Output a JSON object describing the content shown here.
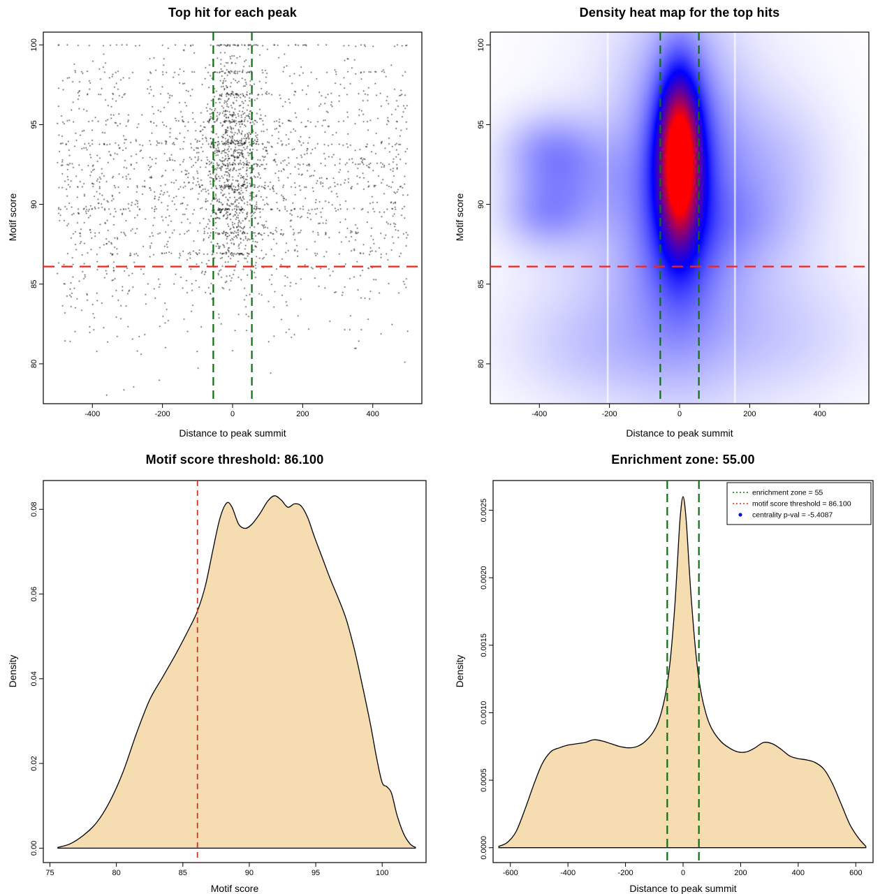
{
  "figure": {
    "background": "#ffffff",
    "summary": {
      "motif_score_threshold": 86.1,
      "enrichment_zone": 55,
      "centrality_pval": "-5.4087"
    }
  },
  "colors": {
    "threshold_red": "#f2241d",
    "threshold_dark_red": "#c0392b",
    "zone_green": "#0f6e0f",
    "density_fill": "#f6ddb1",
    "curve_stroke": "#000000",
    "scatter_point": "#000000",
    "legend_point_blue": "#1212cc",
    "heat_low": "#ffffff",
    "heat_mid": "#0000ff",
    "heat_high": "#ff0000"
  },
  "chart_data": [
    {
      "type": "scatter",
      "title": "Top hit for each peak",
      "xlabel": "Distance to peak summit",
      "ylabel": "Motif score",
      "xlim": [
        -540,
        540
      ],
      "ylim": [
        77.5,
        100.8
      ],
      "xticks": [
        -400,
        -200,
        0,
        200,
        400
      ],
      "xticklabels": [
        "-400",
        "-200",
        "0",
        "200",
        "400"
      ],
      "yticks": [
        80,
        85,
        90,
        95,
        100
      ],
      "yticklabels": [
        "80",
        "85",
        "90",
        "95",
        "100"
      ],
      "motif_score_threshold": 86.1,
      "enrichment_zone": [
        -55,
        55
      ],
      "points_model": {
        "seed": 1337,
        "n": 2900,
        "x_range": [
          -500,
          500
        ],
        "central_fraction": 0.36,
        "central_x_sigma": 42,
        "central_y_mean": 92.6,
        "central_y_sigma": 3.4,
        "background_y_mean": 91.0,
        "background_y_sigma": 4.8,
        "y_range": [
          77.9,
          100.0
        ],
        "score_bands": [
          100.0,
          98.3,
          96.9,
          95.2,
          93.8,
          92.5,
          91.1,
          89.7,
          88.2,
          86.9
        ],
        "band_fraction": 0.2
      }
    },
    {
      "type": "heatmap",
      "title": "Density heat map for the top hits",
      "xlabel": "Distance to peak summit",
      "ylabel": "Motif score",
      "xlim": [
        -540,
        540
      ],
      "ylim": [
        77.5,
        100.8
      ],
      "xticks": [
        -400,
        -200,
        0,
        200,
        400
      ],
      "xticklabels": [
        "-400",
        "-200",
        "0",
        "200",
        "400"
      ],
      "yticks": [
        80,
        85,
        90,
        95,
        100
      ],
      "yticklabels": [
        "80",
        "85",
        "90",
        "95",
        "100"
      ],
      "motif_score_threshold": 86.1,
      "enrichment_zone": [
        -55,
        55
      ],
      "colormap": [
        "#ffffff",
        "#0000ff",
        "#ff0000"
      ],
      "normalization": 2.1,
      "density_kernels": [
        [
          0,
          92.8,
          34,
          3.0,
          1.5
        ],
        [
          0,
          92.3,
          55,
          4.5,
          0.75
        ],
        [
          0,
          91.5,
          110,
          6.5,
          0.42
        ],
        [
          0,
          90.5,
          230,
          9.0,
          0.18
        ],
        [
          -370,
          93.3,
          95,
          1.7,
          0.3
        ],
        [
          -385,
          89.4,
          85,
          1.5,
          0.26
        ],
        [
          -300,
          91.3,
          120,
          2.2,
          0.18
        ],
        [
          260,
          92.3,
          130,
          3.2,
          0.16
        ],
        [
          170,
          88.8,
          110,
          1.8,
          0.12
        ],
        [
          0,
          83.0,
          330,
          4.0,
          0.12
        ],
        [
          -260,
          80.8,
          160,
          2.2,
          0.1
        ],
        [
          320,
          81.5,
          170,
          2.5,
          0.08
        ]
      ],
      "artifact_lines_x": [
        -205,
        158
      ]
    },
    {
      "type": "area",
      "title": "Motif score threshold: 86.100",
      "xlabel": "Motif score",
      "ylabel": "Density",
      "xlim": [
        74.5,
        103.3
      ],
      "ylim": [
        -0.0034,
        0.0868
      ],
      "xticks": [
        75,
        80,
        85,
        90,
        95,
        100
      ],
      "xticklabels": [
        "75",
        "80",
        "85",
        "90",
        "95",
        "100"
      ],
      "yticks": [
        0,
        0.02,
        0.04,
        0.06,
        0.08
      ],
      "yticklabels": [
        "0.00",
        "0.02",
        "0.04",
        "0.06",
        "0.08"
      ],
      "threshold_x": 86.1,
      "x": [
        75.6,
        76.5,
        77.5,
        78.5,
        79.5,
        80.5,
        81.5,
        82.5,
        83.5,
        84.5,
        85.5,
        86.1,
        86.7,
        87.3,
        87.8,
        88.3,
        88.7,
        89.2,
        89.7,
        90.2,
        90.8,
        91.4,
        91.9,
        92.4,
        92.9,
        93.4,
        93.9,
        94.4,
        94.9,
        95.5,
        96.1,
        96.7,
        97.3,
        97.9,
        98.5,
        99.1,
        99.6,
        100.0,
        100.35,
        100.7,
        101.1,
        101.6,
        102.1,
        102.5
      ],
      "y": [
        0.0002,
        0.001,
        0.003,
        0.006,
        0.011,
        0.018,
        0.027,
        0.035,
        0.0405,
        0.046,
        0.052,
        0.056,
        0.062,
        0.071,
        0.078,
        0.0815,
        0.0805,
        0.0765,
        0.0755,
        0.0765,
        0.079,
        0.082,
        0.0832,
        0.0822,
        0.0805,
        0.0813,
        0.0808,
        0.078,
        0.0735,
        0.0685,
        0.0635,
        0.059,
        0.054,
        0.047,
        0.0385,
        0.0295,
        0.021,
        0.0155,
        0.0145,
        0.013,
        0.008,
        0.0035,
        0.001,
        0.0002
      ]
    },
    {
      "type": "area",
      "title": "Enrichment zone: 55.00",
      "xlabel": "Distance to peak summit",
      "ylabel": "Density",
      "xlim": [
        -660,
        660
      ],
      "ylim": [
        -0.00011,
        0.00272
      ],
      "xticks": [
        -600,
        -400,
        -200,
        0,
        200,
        400,
        600
      ],
      "xticklabels": [
        "-600",
        "-400",
        "-200",
        "0",
        "200",
        "400",
        "600"
      ],
      "yticks": [
        0,
        0.0005,
        0.001,
        0.0015,
        0.002,
        0.0025
      ],
      "yticklabels": [
        "0.0000",
        "0.0005",
        "0.0010",
        "0.0015",
        "0.0020",
        "0.0025"
      ],
      "enrichment_zone": [
        -55,
        55
      ],
      "x": [
        -640,
        -610,
        -580,
        -550,
        -520,
        -490,
        -460,
        -430,
        -400,
        -370,
        -340,
        -310,
        -280,
        -250,
        -220,
        -190,
        -160,
        -130,
        -100,
        -80,
        -60,
        -45,
        -30,
        -20,
        -10,
        0,
        10,
        20,
        30,
        45,
        60,
        80,
        100,
        130,
        160,
        190,
        220,
        250,
        280,
        310,
        340,
        370,
        400,
        430,
        460,
        490,
        520,
        550,
        580,
        610,
        635
      ],
      "y": [
        1e-05,
        4e-05,
        0.00012,
        0.00028,
        0.00046,
        0.00062,
        0.00071,
        0.00074,
        0.00076,
        0.00077,
        0.00078,
        0.0008,
        0.00079,
        0.00077,
        0.00075,
        0.00074,
        0.00075,
        0.00079,
        0.00087,
        0.00097,
        0.00115,
        0.00138,
        0.00175,
        0.0021,
        0.00245,
        0.0026,
        0.00245,
        0.00212,
        0.0018,
        0.00143,
        0.00118,
        0.00099,
        0.00088,
        0.00079,
        0.00074,
        0.00071,
        0.00071,
        0.00074,
        0.00078,
        0.00077,
        0.00073,
        0.00068,
        0.00066,
        0.00065,
        0.00063,
        0.00058,
        0.00047,
        0.00032,
        0.00017,
        7e-05,
        1e-05
      ],
      "legend": {
        "items": [
          {
            "label": "enrichment zone = 55",
            "swatch": "dotted-line",
            "color": "#0f6e0f"
          },
          {
            "label": "motif score threshold = 86.100",
            "swatch": "dotted-line",
            "color": "#f2241d"
          },
          {
            "label": "centrality p-val = -5.4087",
            "swatch": "point",
            "color": "#1212cc"
          }
        ]
      }
    }
  ]
}
